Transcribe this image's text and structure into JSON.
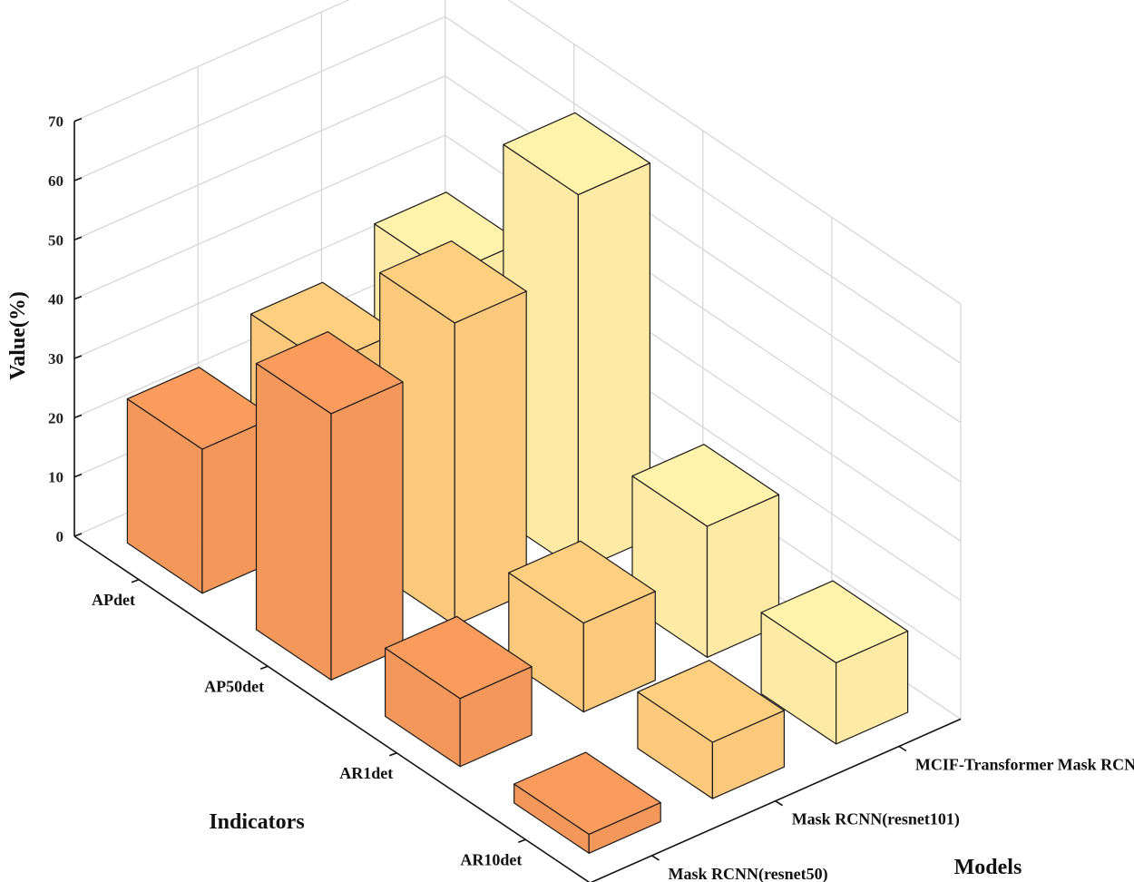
{
  "chart_data": {
    "type": "bar3d",
    "title": "",
    "zlabel": "Value(%)",
    "xlabel": "Indicators",
    "ylabel": "Models",
    "zlim": [
      0,
      70
    ],
    "zticks": [
      0,
      10,
      20,
      30,
      40,
      50,
      60,
      70
    ],
    "grid": true,
    "categories": [
      "APdet",
      "AP50det",
      "AR1det",
      "AR10det"
    ],
    "series": [
      {
        "name": "Mask RCNN(resnet50)",
        "color": "#f4975a",
        "values": [
          24.3,
          44.9,
          11.5,
          3.2
        ]
      },
      {
        "name": "Mask RCNN(resnet101)",
        "color": "#fac97c",
        "values": [
          29.4,
          51.0,
          15.0,
          9.5
        ]
      },
      {
        "name": "MCIF-Transformer Mask RCNN",
        "color": "#fdeba5",
        "values": [
          35.4,
          63.4,
          22.1,
          13.7
        ]
      }
    ]
  }
}
